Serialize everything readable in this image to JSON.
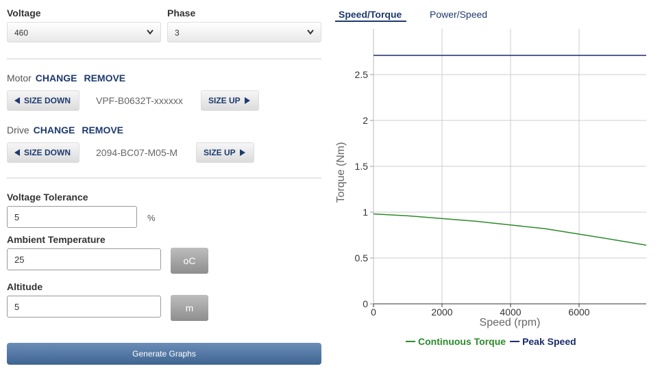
{
  "form": {
    "voltage": {
      "label": "Voltage",
      "value": "460"
    },
    "phase": {
      "label": "Phase",
      "value": "3"
    },
    "motor": {
      "label": "Motor",
      "change": "CHANGE",
      "remove": "REMOVE",
      "size_down": "SIZE DOWN",
      "size_up": "SIZE UP",
      "model": "VPF-B0632T-xxxxxx"
    },
    "drive": {
      "label": "Drive",
      "change": "CHANGE",
      "remove": "REMOVE",
      "size_down": "SIZE DOWN",
      "size_up": "SIZE UP",
      "model": "2094-BC07-M05-M"
    },
    "voltage_tolerance": {
      "label": "Voltage Tolerance",
      "value": "5",
      "unit": "%"
    },
    "ambient_temperature": {
      "label": "Ambient Temperature",
      "value": "25",
      "unit": "oC"
    },
    "altitude": {
      "label": "Altitude",
      "value": "5",
      "unit": "m"
    },
    "generate": "Generate Graphs"
  },
  "tabs": [
    "Speed/Torque",
    "Power/Speed"
  ],
  "chart_data": {
    "type": "line",
    "x_label": "Speed (rpm)",
    "y_label": "Torque (Nm)",
    "x": [
      0,
      1000,
      2000,
      3000,
      4000,
      5000,
      6000,
      7000,
      7960
    ],
    "series": [
      {
        "name": "Continuous Torque",
        "color": "#2a8a2a",
        "values": [
          0.98,
          0.96,
          0.93,
          0.9,
          0.86,
          0.82,
          0.76,
          0.7,
          0.64
        ]
      },
      {
        "name": "Peak Speed",
        "color": "#1b2a6b",
        "values": [
          2.71,
          2.71,
          2.71,
          2.71,
          2.71,
          2.71,
          2.71,
          2.71,
          2.71
        ]
      }
    ],
    "xlim": [
      0,
      7960
    ],
    "xticks": [
      0,
      2000,
      4000,
      6000
    ],
    "ylim": [
      0,
      3
    ],
    "yticks": [
      0,
      0.5,
      1,
      1.5,
      2,
      2.5
    ],
    "grid": true,
    "legend": "bottom"
  }
}
